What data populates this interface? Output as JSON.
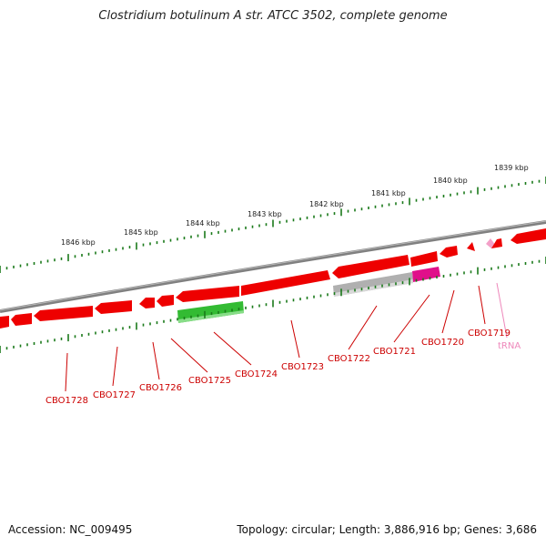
{
  "title": "Clostridium botulinum A str. ATCC 3502, complete genome",
  "accession": "Accession: NC_009495",
  "topology": "Topology: circular; Length: 3,886,916 bp; Genes: 3,686",
  "colors": {
    "backbone": "#808080",
    "cds_forward": "#ee0000",
    "cds_reverse_green": "#33bb33",
    "pseudo_grey": "#b0b0b0",
    "misc_magenta": "#e0108a",
    "trna": "#f3a0c8",
    "ticks": "#1a7a1a",
    "labels": "#cc0000"
  },
  "scale_labels": [
    "1846 kbp",
    "1845 kbp",
    "1844 kbp",
    "1843 kbp",
    "1842 kbp",
    "1841 kbp",
    "1840 kbp",
    "1839 kbp"
  ],
  "gene_labels": [
    "CBO1728",
    "CBO1727",
    "CBO1726",
    "CBO1725",
    "CBO1724",
    "CBO1723",
    "CBO1722",
    "CBO1721",
    "CBO1720",
    "CBO1719"
  ],
  "trna_label": "tRNA"
}
